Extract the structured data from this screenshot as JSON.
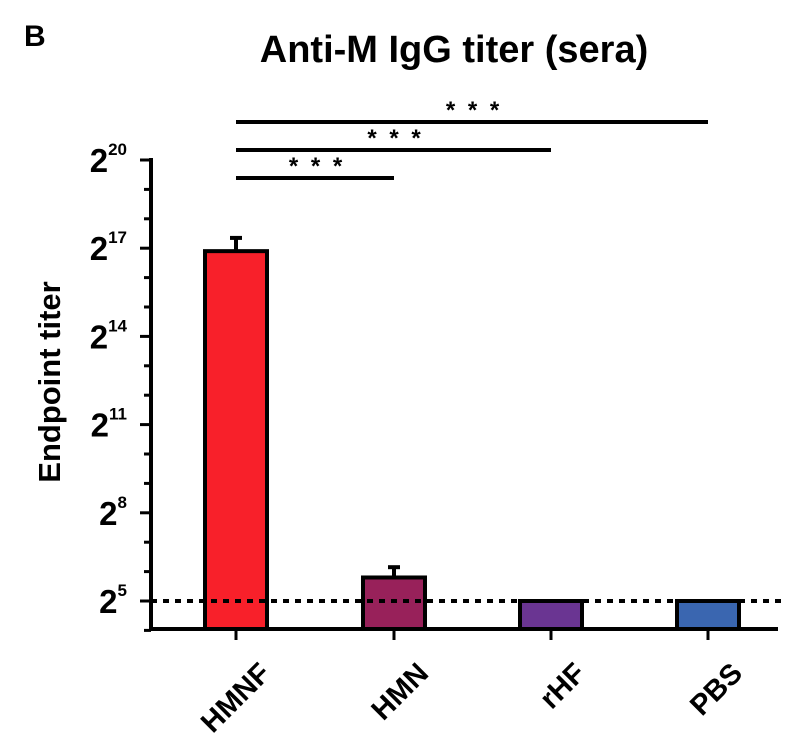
{
  "panel_letter": "B",
  "chart_data": {
    "type": "bar",
    "title": "Anti-M IgG titer (sera)",
    "ylabel": "Endpoint titer",
    "xlabel": "",
    "y_scale": "log2",
    "ylim_exponent": [
      3.5,
      20
    ],
    "yticks": [
      {
        "base": "2",
        "exp": "20",
        "value_exp": 20
      },
      {
        "base": "2",
        "exp": "17",
        "value_exp": 17
      },
      {
        "base": "2",
        "exp": "14",
        "value_exp": 14
      },
      {
        "base": "2",
        "exp": "11",
        "value_exp": 11
      },
      {
        "base": "2",
        "exp": "8",
        "value_exp": 8
      },
      {
        "base": "2",
        "exp": "5",
        "value_exp": 5
      }
    ],
    "categories": [
      "HMNF",
      "HMN",
      "rHF",
      "PBS"
    ],
    "values_log2": [
      16.9,
      5.8,
      5.0,
      5.0
    ],
    "error_log2": [
      0.45,
      0.35,
      0,
      0
    ],
    "colors": [
      "#f8202a",
      "#98215a",
      "#6a3592",
      "#3a66b0"
    ],
    "reference_line_log2": 5,
    "significance": [
      {
        "from": "HMNF",
        "to": "HMN",
        "label": "* * *"
      },
      {
        "from": "HMNF",
        "to": "rHF",
        "label": "* * *"
      },
      {
        "from": "HMNF",
        "to": "PBS",
        "label": "* * *"
      }
    ]
  }
}
